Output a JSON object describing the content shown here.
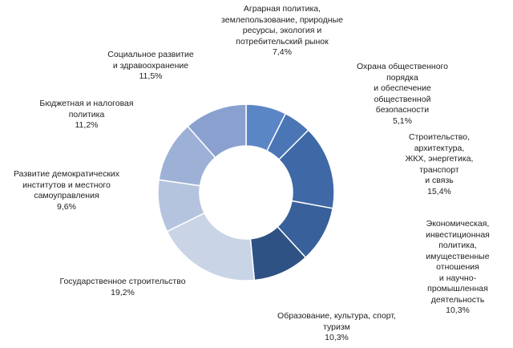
{
  "chart_data": {
    "type": "donut",
    "start_angle_deg": 0,
    "direction": "clockwise",
    "segments": [
      {
        "label": "Аграрная политика,\nземлепользование, природные\nресурсы, экология и\nпотребительский рынок",
        "value": 7.4,
        "display": "7,4%",
        "color": "#5b86c6"
      },
      {
        "label": "Охрана общественного порядка\nи обеспечение общественной\nбезопасности",
        "value": 5.1,
        "display": "5,1%",
        "color": "#4a76b6"
      },
      {
        "label": "Строительство, архитектура,\nЖКХ, энергетика, транспорт\nи связь",
        "value": 15.4,
        "display": "15,4%",
        "color": "#3e69a6"
      },
      {
        "label": "Экономическая,\nинвестиционная политика,\nимущественные отношения\nи научно-промышленная\nдеятельность",
        "value": 10.3,
        "display": "10,3%",
        "color": "#38609a"
      },
      {
        "label": "Образование, культура, спорт,\nтуризм",
        "value": 10.3,
        "display": "10,3%",
        "color": "#2f5284"
      },
      {
        "label": "Государственное строительство",
        "value": 19.2,
        "display": "19,2%",
        "color": "#c9d4e6"
      },
      {
        "label": "Развитие демократических\nинститутов и местного\nсамоуправления",
        "value": 9.6,
        "display": "9,6%",
        "color": "#b5c4de"
      },
      {
        "label": "Бюджетная и налоговая\nполитика",
        "value": 11.2,
        "display": "11,2%",
        "color": "#9db1d6"
      },
      {
        "label": "Социальное развитие\nи здравоохранение",
        "value": 11.5,
        "display": "11,5%",
        "color": "#8aa1cf"
      }
    ]
  }
}
